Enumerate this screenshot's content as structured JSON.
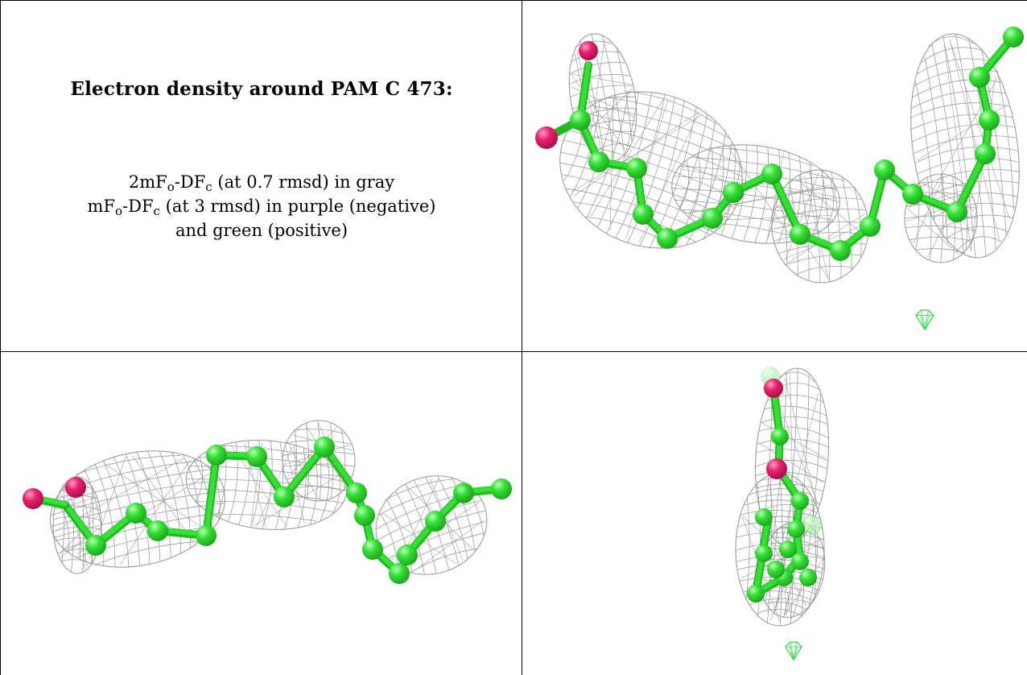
{
  "caption": {
    "title": "Electron density around PAM C 473:",
    "line1": {
      "a": "2mF",
      "o": "o",
      "b": "-DF",
      "c": "c",
      "rest": " (at 0.7 rmsd) in gray"
    },
    "line2": {
      "a": "mF",
      "o": "o",
      "b": "-DF",
      "c": "c",
      "rest": " (at 3 rmsd) in purple (negative)"
    },
    "line3": "and green (positive)"
  },
  "colors": {
    "carbon_atom": "#33e033",
    "carbon_highlight": "#b8ffb8",
    "oxygen_atom": "#e8206e",
    "oxygen_highlight": "#ff9fc4",
    "mesh_gray": "#8c8c8c",
    "positive_density": "#2fdc4a"
  },
  "panels": [
    {
      "name": "view-top-right",
      "molecule": "PAM C 473"
    },
    {
      "name": "view-bottom-left",
      "molecule": "PAM C 473"
    },
    {
      "name": "view-bottom-right",
      "molecule": "PAM C 473"
    }
  ]
}
